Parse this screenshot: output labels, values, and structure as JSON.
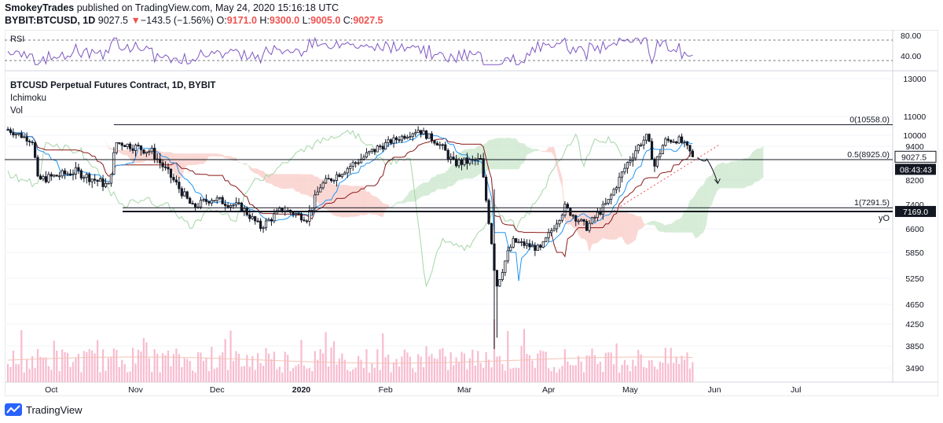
{
  "header": {
    "author": "SmokeyTrades",
    "published": "published on TradingView.com, May 24, 2020 15:16:18 UTC",
    "symbol": "BYBIT:BTCUSD, 1D",
    "last": "9027.5",
    "change_arrow": "▼",
    "change": "−143.5 (−1.56%)",
    "o_label": "O:",
    "o": "9171.0",
    "h_label": "H:",
    "h": "9300.0",
    "l_label": "L:",
    "l": "9005.0",
    "c_label": "C:",
    "c": "9027.5"
  },
  "rsi_pane": {
    "label": "RSI",
    "ticks": [
      "80.00",
      "40.00"
    ]
  },
  "legend": {
    "title": "BTCUSD Perpetual Futures Contract, 1D, BYBIT",
    "ichimoku": "Ichimoku",
    "vol": "Vol"
  },
  "levels": {
    "fib0": "0(10558.0)",
    "fib05": "0.5(8925.0)",
    "fib1": "1(7291.5)",
    "yo": "yO"
  },
  "price_tag": {
    "value": "9027.5",
    "countdown": "08:43:43"
  },
  "yo_tag": "7169.0",
  "footer": {
    "brand": "TradingView"
  },
  "colors": {
    "up": "#ffffff",
    "down": "#131722",
    "tenkan": "#2196f3",
    "kijun": "#8b1a1a",
    "lagging": "#a5d6a7",
    "cloud_bear": "#f8c9c4",
    "cloud_bull": "#c8e6c9",
    "rsi": "#7e57c2",
    "volume": "#f8bbd0"
  },
  "chart_data": {
    "type": "candlestick",
    "symbol": "BTCUSD",
    "timeframe": "1D",
    "y_axis_ticks": [
      13000,
      11000,
      10000,
      9400,
      8200,
      7400,
      6600,
      5850,
      5250,
      4650,
      4250,
      3850,
      3490
    ],
    "x_axis_ticks": [
      "Oct",
      "Nov",
      "Dec",
      "2020",
      "Feb",
      "Mar",
      "Apr",
      "May",
      "Jun",
      "Jul"
    ],
    "fib_levels": [
      {
        "ratio": "0",
        "price": 10558.0
      },
      {
        "ratio": "0.5",
        "price": 8925.0
      },
      {
        "ratio": "1",
        "price": 7291.5
      }
    ],
    "yearly_open": 7169.0,
    "last_price": 9027.5,
    "ohlc_last": {
      "open": 9171.0,
      "high": 9300.0,
      "low": 9005.0,
      "close": 9027.5
    },
    "price_anchors": [
      [
        "2019-09-15",
        10300
      ],
      [
        "2019-09-24",
        9700
      ],
      [
        "2019-09-26",
        8200
      ],
      [
        "2019-10-10",
        8500
      ],
      [
        "2019-10-22",
        8000
      ],
      [
        "2019-10-25",
        9600
      ],
      [
        "2019-11-07",
        9200
      ],
      [
        "2019-11-22",
        7300
      ],
      [
        "2019-11-29",
        7600
      ],
      [
        "2019-12-10",
        7300
      ],
      [
        "2019-12-17",
        6650
      ],
      [
        "2019-12-25",
        7250
      ],
      [
        "2020-01-03",
        6950
      ],
      [
        "2020-01-08",
        8000
      ],
      [
        "2020-01-19",
        8700
      ],
      [
        "2020-01-30",
        9400
      ],
      [
        "2020-02-13",
        10300
      ],
      [
        "2020-02-20",
        9600
      ],
      [
        "2020-02-26",
        8800
      ],
      [
        "2020-03-07",
        8900
      ],
      [
        "2020-03-12",
        5500
      ],
      [
        "2020-03-13",
        5100
      ],
      [
        "2020-03-19",
        6200
      ],
      [
        "2020-03-29",
        5950
      ],
      [
        "2020-04-07",
        7300
      ],
      [
        "2020-04-15",
        6650
      ],
      [
        "2020-04-23",
        7500
      ],
      [
        "2020-04-30",
        8800
      ],
      [
        "2020-05-07",
        9900
      ],
      [
        "2020-05-10",
        8700
      ],
      [
        "2020-05-14",
        9700
      ],
      [
        "2020-05-19",
        9750
      ],
      [
        "2020-05-24",
        9027.5
      ]
    ],
    "rsi": {
      "overbought": 80,
      "oversold": 40
    },
    "volume_spike_date": "2020-03-12"
  }
}
